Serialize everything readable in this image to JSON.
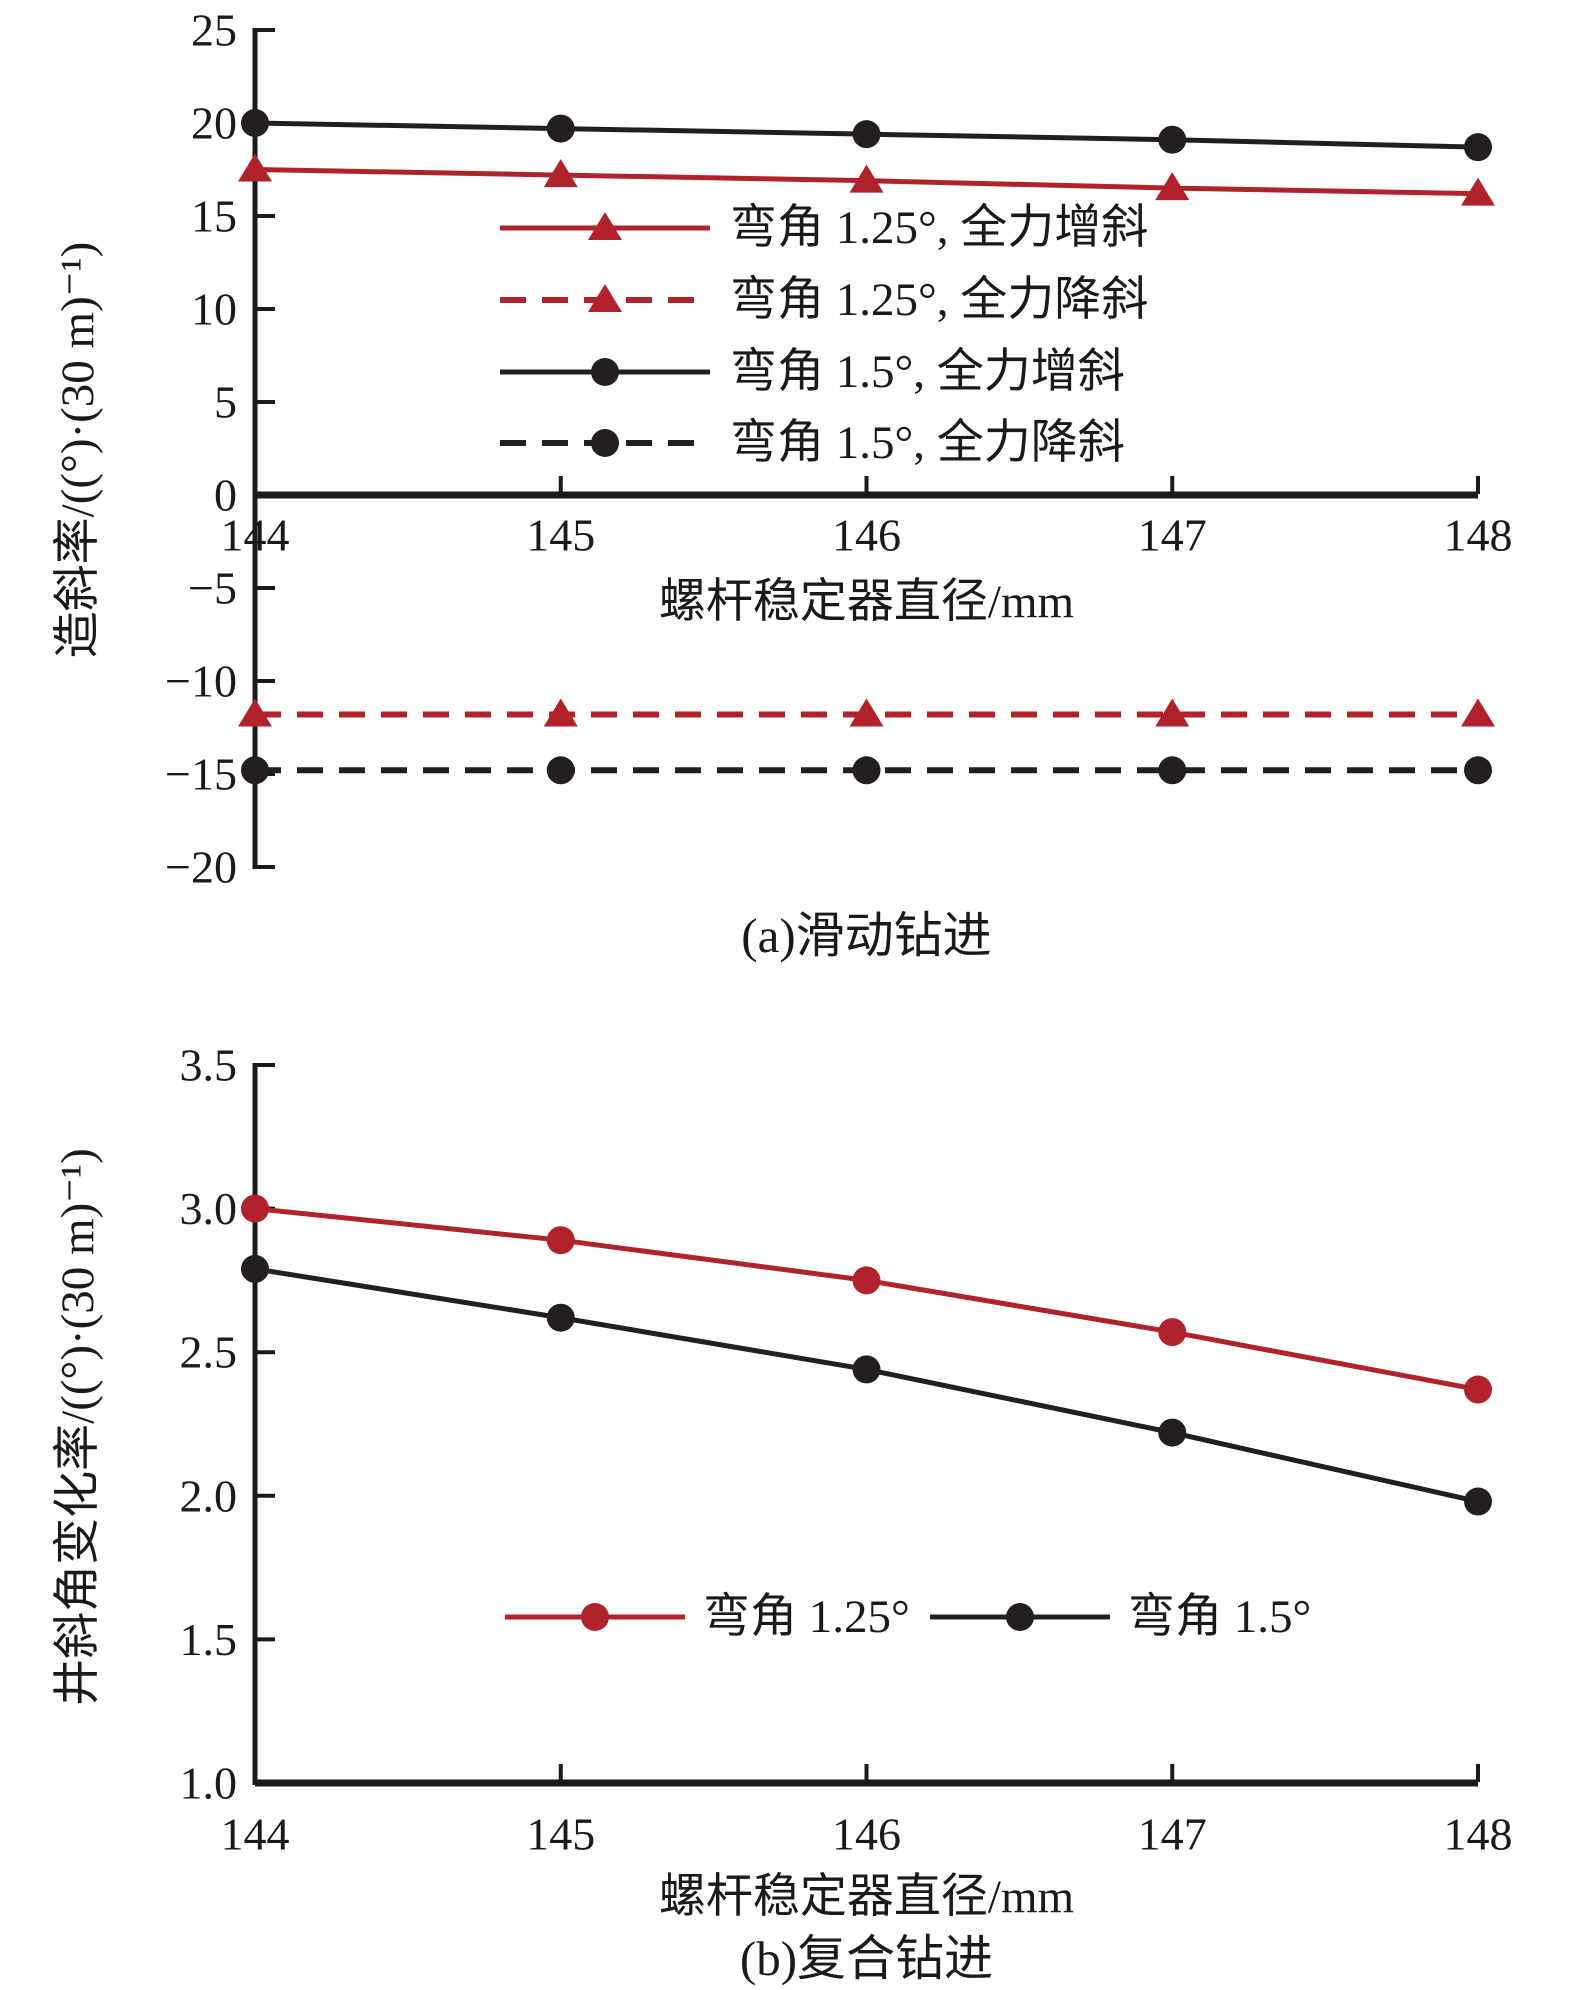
{
  "figure": {
    "background": "#ffffff",
    "text_color": "#1a1a1a",
    "accent_red": "#b2222a",
    "series_black": "#231f20"
  },
  "chart_data": [
    {
      "type": "line",
      "panel": "a",
      "caption": "(a)滑动钻进",
      "xlabel": "螺杆稳定器直径/mm",
      "ylabel": "造斜率/((°)·(30 m)⁻¹)",
      "x": [
        144,
        145,
        146,
        147,
        148
      ],
      "x_tick_labels": [
        "144",
        "145",
        "146",
        "147",
        "148"
      ],
      "xlim": [
        144,
        148
      ],
      "ylim": [
        -20,
        25
      ],
      "y_ticks": [
        25,
        20,
        15,
        10,
        5,
        0,
        -5,
        -10,
        -15,
        -20
      ],
      "y_tick_labels": [
        "25",
        "20",
        "15",
        "10",
        "5",
        "0",
        "−5",
        "−10",
        "−15",
        "−20"
      ],
      "grid": false,
      "legend_position": "inside upper right",
      "series": [
        {
          "name": "弯角 1.25°, 全力增斜",
          "color": "#b2222a",
          "line_style": "solid",
          "marker": "triangle",
          "values": [
            17.5,
            17.2,
            16.9,
            16.5,
            16.2
          ]
        },
        {
          "name": "弯角 1.25°, 全力降斜",
          "color": "#b2222a",
          "line_style": "dashed",
          "marker": "triangle",
          "values": [
            -11.8,
            -11.8,
            -11.8,
            -11.8,
            -11.8
          ]
        },
        {
          "name": "弯角 1.5°, 全力增斜",
          "color": "#231f20",
          "line_style": "solid",
          "marker": "circle",
          "values": [
            20.0,
            19.7,
            19.4,
            19.1,
            18.7
          ]
        },
        {
          "name": "弯角 1.5°, 全力降斜",
          "color": "#231f20",
          "line_style": "dashed",
          "marker": "circle",
          "values": [
            -14.8,
            -14.8,
            -14.8,
            -14.8,
            -14.8
          ]
        }
      ]
    },
    {
      "type": "line",
      "panel": "b",
      "caption": "(b)复合钻进",
      "xlabel": "螺杆稳定器直径/mm",
      "ylabel": "井斜角变化率/((°)·(30 m)⁻¹)",
      "x": [
        144,
        145,
        146,
        147,
        148
      ],
      "x_tick_labels": [
        "144",
        "145",
        "146",
        "147",
        "148"
      ],
      "xlim": [
        144,
        148
      ],
      "ylim": [
        1.0,
        3.5
      ],
      "y_ticks": [
        3.5,
        3.0,
        2.5,
        2.0,
        1.5,
        1.0
      ],
      "y_tick_labels": [
        "3.5",
        "3.0",
        "2.5",
        "2.0",
        "1.5",
        "1.0"
      ],
      "grid": false,
      "legend_position": "inside bottom center",
      "series": [
        {
          "name": "弯角 1.25°",
          "color": "#b2222a",
          "line_style": "solid",
          "marker": "circle",
          "values": [
            3.0,
            2.89,
            2.75,
            2.57,
            2.37
          ]
        },
        {
          "name": "弯角 1.5°",
          "color": "#231f20",
          "line_style": "solid",
          "marker": "circle",
          "values": [
            2.79,
            2.62,
            2.44,
            2.22,
            1.98
          ]
        }
      ]
    }
  ]
}
